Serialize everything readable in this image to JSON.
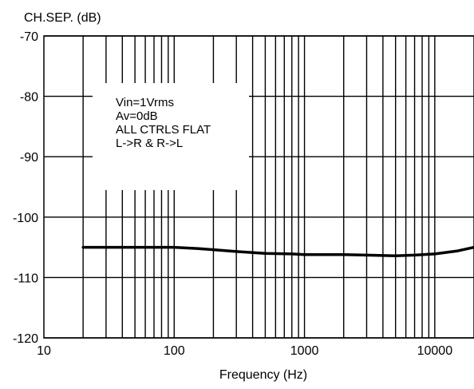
{
  "chart_data": {
    "type": "line",
    "ylabel": "CH.SEP. (dB)",
    "xlabel": "Frequency (Hz)",
    "xscale": "log",
    "xlim": [
      10,
      20000
    ],
    "ylim": [
      -120,
      -70
    ],
    "grid": true,
    "x_ticks": [
      {
        "value": 10,
        "label": "10"
      },
      {
        "value": 100,
        "label": "100"
      },
      {
        "value": 1000,
        "label": "1000"
      },
      {
        "value": 10000,
        "label": "10000"
      }
    ],
    "y_ticks": [
      {
        "value": -70,
        "label": "-70"
      },
      {
        "value": -80,
        "label": "-80"
      },
      {
        "value": -90,
        "label": "-90"
      },
      {
        "value": -100,
        "label": "-100"
      },
      {
        "value": -110,
        "label": "-110"
      },
      {
        "value": -120,
        "label": "-120"
      }
    ],
    "annotation_lines": [
      "Vin=1Vrms",
      "Av=0dB",
      "ALL CTRLS FLAT",
      "L->R & R->L"
    ],
    "series": [
      {
        "x": [
          20,
          30,
          50,
          80,
          100,
          150,
          200,
          300,
          500,
          800,
          1000,
          1500,
          2000,
          3000,
          5000,
          7000,
          10000,
          15000,
          20000
        ],
        "y": [
          -105,
          -105,
          -105,
          -105,
          -105,
          -105.2,
          -105.4,
          -105.7,
          -106,
          -106.1,
          -106.2,
          -106.2,
          -106.2,
          -106.3,
          -106.4,
          -106.3,
          -106.1,
          -105.6,
          -105
        ]
      }
    ]
  }
}
